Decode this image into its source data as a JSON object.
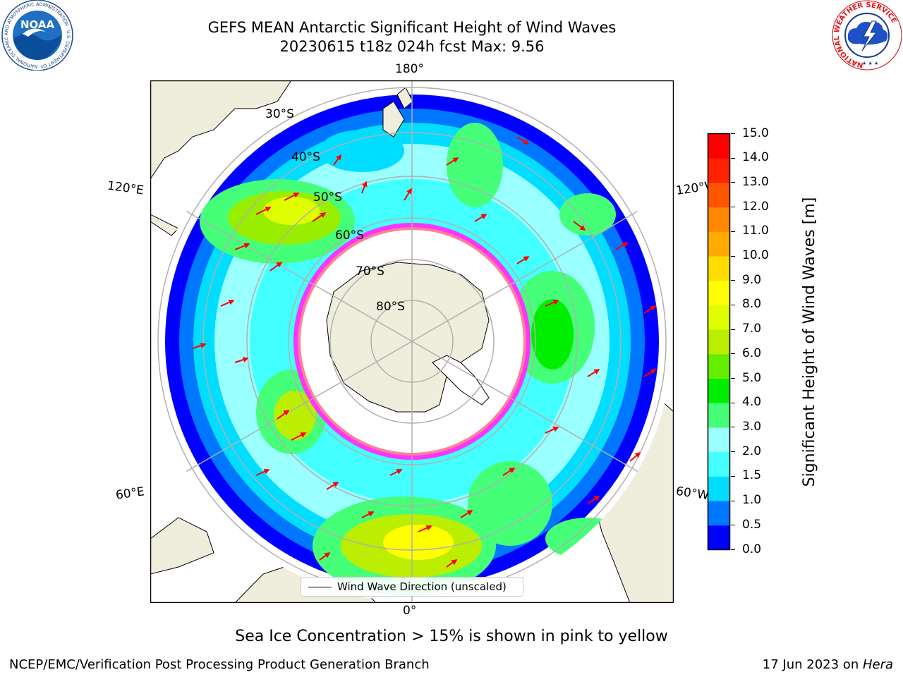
{
  "header": {
    "title_line1": "GEFS MEAN Antarctic Significant Height of Wind Waves",
    "title_line2": "20230615 t18z 024h fcst   Max: 9.56"
  },
  "logos": {
    "noaa_text": "NOAA",
    "noaa_ring_text": "NATIONAL OCEANIC AND ATMOSPHERIC ADMINISTRATION · U.S. DEPARTMENT OF COMMERCE",
    "nws_ring_text": "NATIONAL WEATHER SERVICE"
  },
  "map": {
    "longitude_labels": {
      "top": "180°",
      "bottom": "0°",
      "upper_left": "120°E",
      "upper_right": "120°W",
      "lower_left": "60°E",
      "lower_right": "60°W"
    },
    "latitude_labels": [
      "30°S",
      "40°S",
      "50°S",
      "60°S",
      "70°S",
      "80°S"
    ],
    "legend_text": "Wind Wave Direction (unscaled)",
    "colors": {
      "land": "#efeddb",
      "grid": "#b0b0b0",
      "arrow": "#ff0000",
      "sea_ice_low": "#ff33ff",
      "sea_ice_high": "#ffcc33"
    }
  },
  "colorbar": {
    "label": "Significant Height of Wind Waves [m]",
    "ticks": [
      "0.0",
      "0.5",
      "1.0",
      "1.5",
      "2.0",
      "3.0",
      "4.0",
      "5.0",
      "6.0",
      "7.0",
      "8.0",
      "9.0",
      "10.0",
      "11.0",
      "12.0",
      "13.0",
      "14.0",
      "15.0"
    ],
    "colors": [
      "#0000ff",
      "#0077ff",
      "#00ddff",
      "#44ffff",
      "#99ffff",
      "#44ff77",
      "#00ee00",
      "#66ee00",
      "#bbee00",
      "#dfff00",
      "#ffff00",
      "#ffdd00",
      "#ffaa00",
      "#ff8800",
      "#ff5500",
      "#ff2200",
      "#ff0000"
    ]
  },
  "footer": {
    "note": "Sea Ice Concentration > 15% is shown in pink to yellow",
    "left": "NCEP/EMC/Verification Post Processing Product Generation Branch",
    "right_prefix": "17 Jun 2023 on ",
    "right_machine": "Hera"
  }
}
